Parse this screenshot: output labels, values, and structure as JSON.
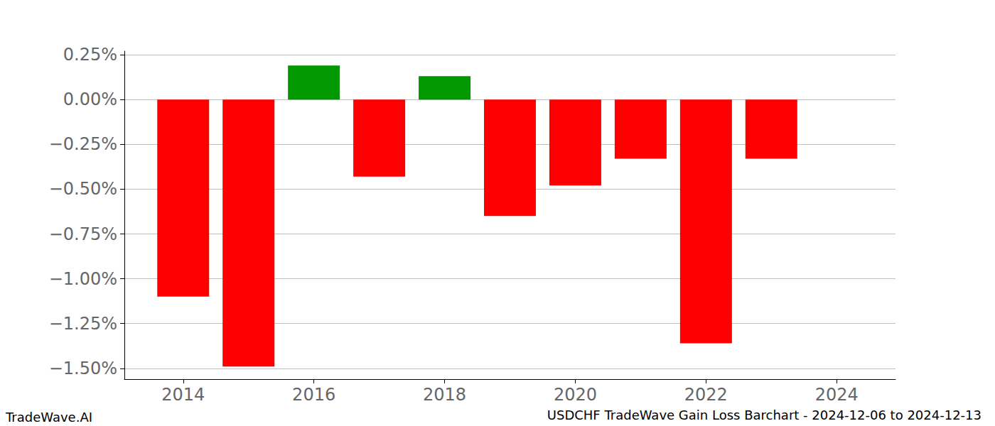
{
  "chart_data": {
    "type": "bar",
    "title": "USDCHF TradeWave Gain Loss Barchart - 2024-12-06 to 2024-12-13",
    "annotations": [
      "TradeWave.AI"
    ],
    "x": [
      2014,
      2015,
      2016,
      2017,
      2018,
      2019,
      2020,
      2021,
      2022,
      2023
    ],
    "values": [
      -1.1,
      -1.49,
      0.19,
      -0.43,
      0.13,
      -0.65,
      -0.48,
      -0.33,
      -1.36,
      -0.33
    ],
    "colors": [
      "#ff0000",
      "#ff0000",
      "#009900",
      "#ff0000",
      "#009900",
      "#ff0000",
      "#ff0000",
      "#ff0000",
      "#ff0000",
      "#ff0000"
    ],
    "xlim": [
      2013.1,
      2024.9
    ],
    "xticks": [
      2014,
      2016,
      2018,
      2020,
      2022,
      2024
    ],
    "ylim": [
      -1.56,
      0.27
    ],
    "yticks": [
      {
        "value": -1.5,
        "label": "−1.50%"
      },
      {
        "value": -1.25,
        "label": "−1.25%"
      },
      {
        "value": -1.0,
        "label": "−1.00%"
      },
      {
        "value": -0.75,
        "label": "−0.75%"
      },
      {
        "value": -0.5,
        "label": "−0.50%"
      },
      {
        "value": -0.25,
        "label": "−0.25%"
      },
      {
        "value": 0,
        "label": "0.00%"
      },
      {
        "value": 0.25,
        "label": "0.25%"
      }
    ],
    "grid": true
  }
}
